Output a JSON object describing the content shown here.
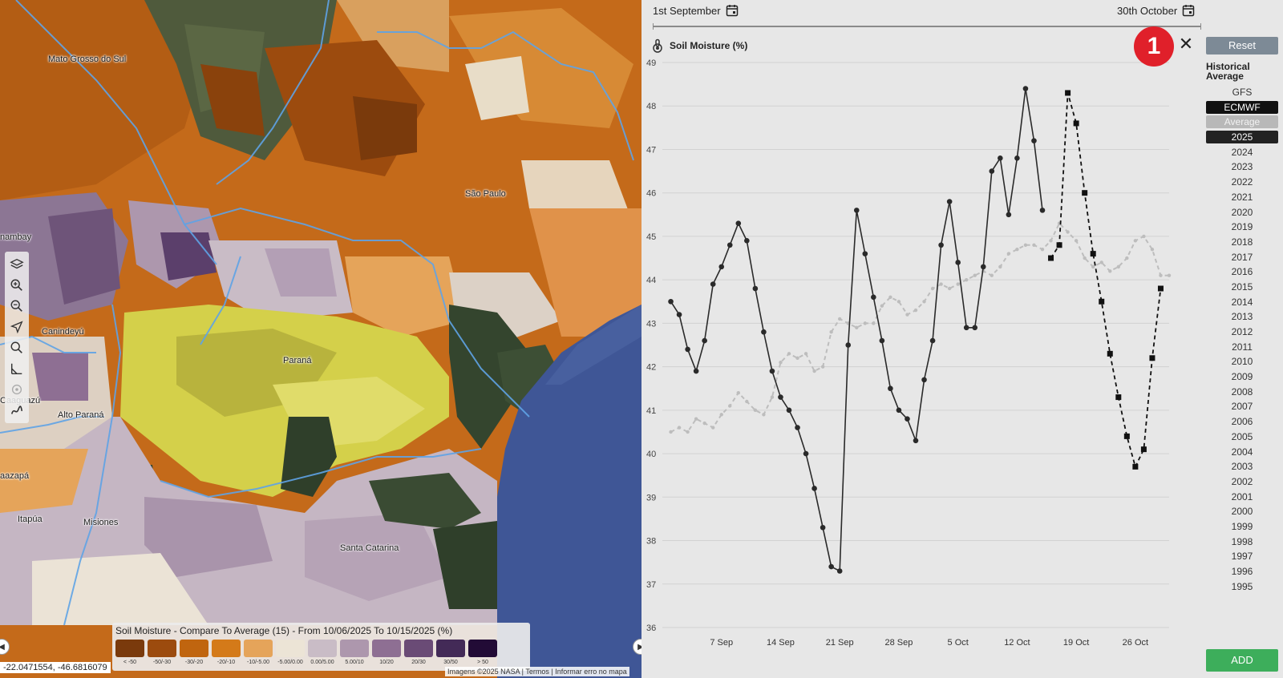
{
  "map": {
    "labels": {
      "mato_grosso": "Mato Grosso do Sul",
      "sao_paulo": "São Paulo",
      "parana": "Paraná",
      "canindeyu": "Canindeyú",
      "alto_parana": "Alto Paraná",
      "itapua": "Itapúa",
      "misiones": "Misiones",
      "santa_catarina": "Santa Catarina",
      "nambay": "nambay",
      "caaguazu": "Caaguazú",
      "caazapa": "aazapá"
    },
    "tools": [
      "layers-icon",
      "zoom-in-icon",
      "zoom-out-icon",
      "navigate-icon",
      "search-icon",
      "measure-icon",
      "locate-icon",
      "draw-icon"
    ],
    "legend": {
      "title": "Soil Moisture - Compare To Average (15) - From 10/06/2025 To 10/15/2025 (%)",
      "items": [
        {
          "label": "< -50",
          "color": "#7a3a0c"
        },
        {
          "label": "-50/-30",
          "color": "#9c4b0e"
        },
        {
          "label": "-30/-20",
          "color": "#c0650f"
        },
        {
          "label": "-20/-10",
          "color": "#d47a19"
        },
        {
          "label": "-10/-5.00",
          "color": "#e5a45a"
        },
        {
          "label": "-5.00/0.00",
          "color": "#ece4d6"
        },
        {
          "label": "0.00/5.00",
          "color": "#c9bcc6"
        },
        {
          "label": "5.00/10",
          "color": "#ad97ad"
        },
        {
          "label": "10/20",
          "color": "#8e6f93"
        },
        {
          "label": "20/30",
          "color": "#6a4b76"
        },
        {
          "label": "30/50",
          "color": "#432a57"
        },
        {
          "label": "> 50",
          "color": "#220b36"
        }
      ]
    },
    "coords": "-22.0471554, -46.6816079",
    "attribution": "Imagens ©2025 NASA | Termos | Informar erro no mapa"
  },
  "panel": {
    "start_date": "1st September",
    "end_date": "30th October",
    "chart_title": "Soil Moisture (%)",
    "badge": "1",
    "close": "✕",
    "reset": "Reset",
    "hist_label": "Historical Average",
    "years": [
      "GFS",
      "ECMWF",
      "Average",
      "2025",
      "2024",
      "2023",
      "2022",
      "2021",
      "2020",
      "2019",
      "2018",
      "2017",
      "2016",
      "2015",
      "2014",
      "2013",
      "2012",
      "2011",
      "2010",
      "2009",
      "2008",
      "2007",
      "2006",
      "2005",
      "2004",
      "2003",
      "2002",
      "2001",
      "2000",
      "1999",
      "1998",
      "1997",
      "1996",
      "1995"
    ],
    "selected": {
      "ECMWF": "sel-black",
      "Average": "sel-grey",
      "2025": "sel-dark"
    },
    "add": "ADD"
  },
  "chart_data": {
    "type": "line",
    "title": "Soil Moisture (%)",
    "x_start": "2025-09-01",
    "x_unit": "day",
    "ylim": [
      36,
      49
    ],
    "yticks": [
      36,
      37,
      38,
      39,
      40,
      41,
      42,
      43,
      44,
      45,
      46,
      47,
      48,
      49
    ],
    "xticks": [
      {
        "day": 7,
        "label": "7 Sep"
      },
      {
        "day": 14,
        "label": "14 Sep"
      },
      {
        "day": 21,
        "label": "21 Sep"
      },
      {
        "day": 28,
        "label": "28 Sep"
      },
      {
        "day": 35,
        "label": "5 Oct"
      },
      {
        "day": 42,
        "label": "12 Oct"
      },
      {
        "day": 49,
        "label": "19 Oct"
      },
      {
        "day": 56,
        "label": "26 Oct"
      }
    ],
    "xlim": [
      0,
      60
    ],
    "grid": true,
    "series": [
      {
        "name": "2025",
        "style": "solid-dark",
        "color": "#2a2a2a",
        "points": [
          [
            1,
            43.5
          ],
          [
            2,
            43.2
          ],
          [
            3,
            42.4
          ],
          [
            4,
            41.9
          ],
          [
            5,
            42.6
          ],
          [
            6,
            43.9
          ],
          [
            7,
            44.3
          ],
          [
            8,
            44.8
          ],
          [
            9,
            45.3
          ],
          [
            10,
            44.9
          ],
          [
            11,
            43.8
          ],
          [
            12,
            42.8
          ],
          [
            13,
            41.9
          ],
          [
            14,
            41.3
          ],
          [
            15,
            41.0
          ],
          [
            16,
            40.6
          ],
          [
            17,
            40.0
          ],
          [
            18,
            39.2
          ],
          [
            19,
            38.3
          ],
          [
            20,
            37.4
          ],
          [
            21,
            37.3
          ],
          [
            22,
            42.5
          ],
          [
            23,
            45.6
          ],
          [
            24,
            44.6
          ],
          [
            25,
            43.6
          ],
          [
            26,
            42.6
          ],
          [
            27,
            41.5
          ],
          [
            28,
            41.0
          ],
          [
            29,
            40.8
          ],
          [
            30,
            40.3
          ],
          [
            31,
            41.7
          ],
          [
            32,
            42.6
          ],
          [
            33,
            44.8
          ],
          [
            34,
            45.8
          ],
          [
            35,
            44.4
          ],
          [
            36,
            42.9
          ],
          [
            37,
            42.9
          ],
          [
            38,
            44.3
          ],
          [
            39,
            46.5
          ],
          [
            40,
            46.8
          ],
          [
            41,
            45.5
          ],
          [
            42,
            46.8
          ],
          [
            43,
            48.4
          ],
          [
            44,
            47.2
          ],
          [
            45,
            45.6
          ]
        ]
      },
      {
        "name": "ECMWF",
        "style": "dashed-square",
        "color": "#111111",
        "points": [
          [
            46,
            44.5
          ],
          [
            47,
            44.8
          ],
          [
            48,
            48.3
          ],
          [
            49,
            47.6
          ],
          [
            50,
            46.0
          ],
          [
            51,
            44.6
          ],
          [
            52,
            43.5
          ],
          [
            53,
            42.3
          ],
          [
            54,
            41.3
          ],
          [
            55,
            40.4
          ],
          [
            56,
            39.7
          ],
          [
            57,
            40.1
          ],
          [
            58,
            42.2
          ],
          [
            59,
            43.8
          ]
        ]
      },
      {
        "name": "Average",
        "style": "dashed-grey",
        "color": "#bdbdbd",
        "points": [
          [
            1,
            40.5
          ],
          [
            2,
            40.6
          ],
          [
            3,
            40.5
          ],
          [
            4,
            40.8
          ],
          [
            5,
            40.7
          ],
          [
            6,
            40.6
          ],
          [
            7,
            40.9
          ],
          [
            8,
            41.1
          ],
          [
            9,
            41.4
          ],
          [
            10,
            41.2
          ],
          [
            11,
            41.0
          ],
          [
            12,
            40.9
          ],
          [
            13,
            41.3
          ],
          [
            14,
            42.1
          ],
          [
            15,
            42.3
          ],
          [
            16,
            42.2
          ],
          [
            17,
            42.3
          ],
          [
            18,
            41.9
          ],
          [
            19,
            42.0
          ],
          [
            20,
            42.8
          ],
          [
            21,
            43.1
          ],
          [
            22,
            43.0
          ],
          [
            23,
            42.9
          ],
          [
            24,
            43.0
          ],
          [
            25,
            43.0
          ],
          [
            26,
            43.4
          ],
          [
            27,
            43.6
          ],
          [
            28,
            43.5
          ],
          [
            29,
            43.2
          ],
          [
            30,
            43.3
          ],
          [
            31,
            43.5
          ],
          [
            32,
            43.8
          ],
          [
            33,
            43.9
          ],
          [
            34,
            43.8
          ],
          [
            35,
            43.9
          ],
          [
            36,
            44.0
          ],
          [
            37,
            44.1
          ],
          [
            38,
            44.2
          ],
          [
            39,
            44.1
          ],
          [
            40,
            44.3
          ],
          [
            41,
            44.6
          ],
          [
            42,
            44.7
          ],
          [
            43,
            44.8
          ],
          [
            44,
            44.8
          ],
          [
            45,
            44.7
          ],
          [
            46,
            44.9
          ],
          [
            47,
            45.3
          ],
          [
            48,
            45.1
          ],
          [
            49,
            44.9
          ],
          [
            50,
            44.5
          ],
          [
            51,
            44.3
          ],
          [
            52,
            44.4
          ],
          [
            53,
            44.2
          ],
          [
            54,
            44.3
          ],
          [
            55,
            44.5
          ],
          [
            56,
            44.9
          ],
          [
            57,
            45.0
          ],
          [
            58,
            44.7
          ],
          [
            59,
            44.1
          ],
          [
            60,
            44.1
          ]
        ]
      }
    ]
  }
}
